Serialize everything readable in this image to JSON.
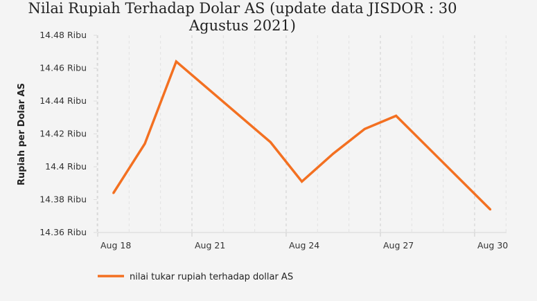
{
  "chart_data": {
    "type": "line",
    "title": "Nilai Rupiah Terhadap Dolar AS (update data JISDOR : 30 Agustus 2021)",
    "xlabel": "",
    "ylabel": "Rupiah per Dolar AS",
    "x": [
      "2021-08-18",
      "2021-08-19",
      "2021-08-20",
      "2021-08-23",
      "2021-08-24",
      "2021-08-25",
      "2021-08-26",
      "2021-08-27",
      "2021-08-30"
    ],
    "series": [
      {
        "name": "nilai tukar rupiah terhadap dollar AS",
        "color": "#f37021",
        "values": [
          14384,
          14414,
          14464,
          14415,
          14391,
          14408,
          14423,
          14431,
          14374
        ]
      }
    ],
    "ylim": [
      14360,
      14480
    ],
    "yticks": [
      14360,
      14380,
      14400,
      14420,
      14440,
      14460,
      14480
    ],
    "ytick_labels": [
      "14.36 Ribu",
      "14.38 Ribu",
      "14.4 Ribu",
      "14.42 Ribu",
      "14.44 Ribu",
      "14.46 Ribu",
      "14.48 Ribu"
    ],
    "xticks": [
      "2021-08-18",
      "2021-08-21",
      "2021-08-24",
      "2021-08-27",
      "2021-08-30"
    ],
    "xtick_labels": [
      "Aug 18",
      "Aug 21",
      "Aug 24",
      "Aug 27",
      "Aug 30"
    ],
    "grid": "vertical dashed",
    "legend": "bottom-left"
  }
}
